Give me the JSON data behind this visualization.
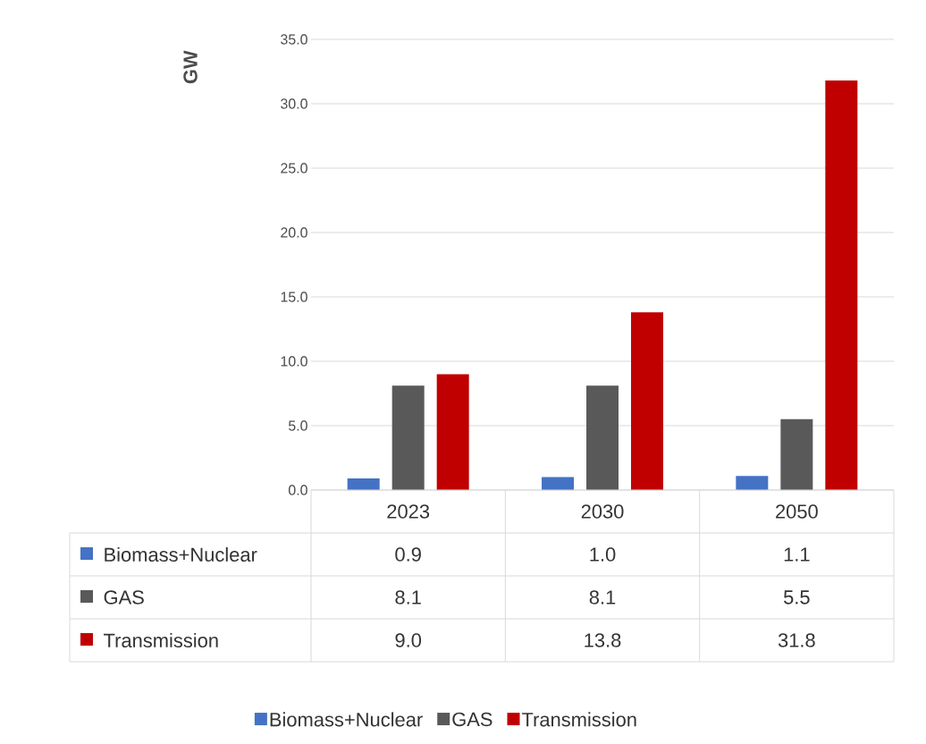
{
  "chart_data": {
    "type": "bar",
    "ylabel": "GW",
    "categories": [
      "2023",
      "2030",
      "2050"
    ],
    "series": [
      {
        "name": "Biomass+Nuclear",
        "color": "#4472c4",
        "values": [
          0.9,
          1.0,
          1.1
        ],
        "value_labels": [
          "0.9",
          "1.0",
          "1.1"
        ]
      },
      {
        "name": "GAS",
        "color": "#595959",
        "values": [
          8.1,
          8.1,
          5.5
        ],
        "value_labels": [
          "8.1",
          "8.1",
          "5.5"
        ]
      },
      {
        "name": "Transmission",
        "color": "#c00000",
        "values": [
          9.0,
          13.8,
          31.8
        ],
        "value_labels": [
          "9.0",
          "13.8",
          "31.8"
        ]
      }
    ],
    "ylim": [
      0,
      35
    ],
    "yticks": [
      {
        "value": 0,
        "label": "0.0"
      },
      {
        "value": 5,
        "label": "5.0"
      },
      {
        "value": 10,
        "label": "10.0"
      },
      {
        "value": 15,
        "label": "15.0"
      },
      {
        "value": 20,
        "label": "20.0"
      },
      {
        "value": 25,
        "label": "25.0"
      },
      {
        "value": 30,
        "label": "30.0"
      },
      {
        "value": 35,
        "label": "35.0"
      }
    ],
    "grid": "y",
    "legend": "bottom"
  }
}
